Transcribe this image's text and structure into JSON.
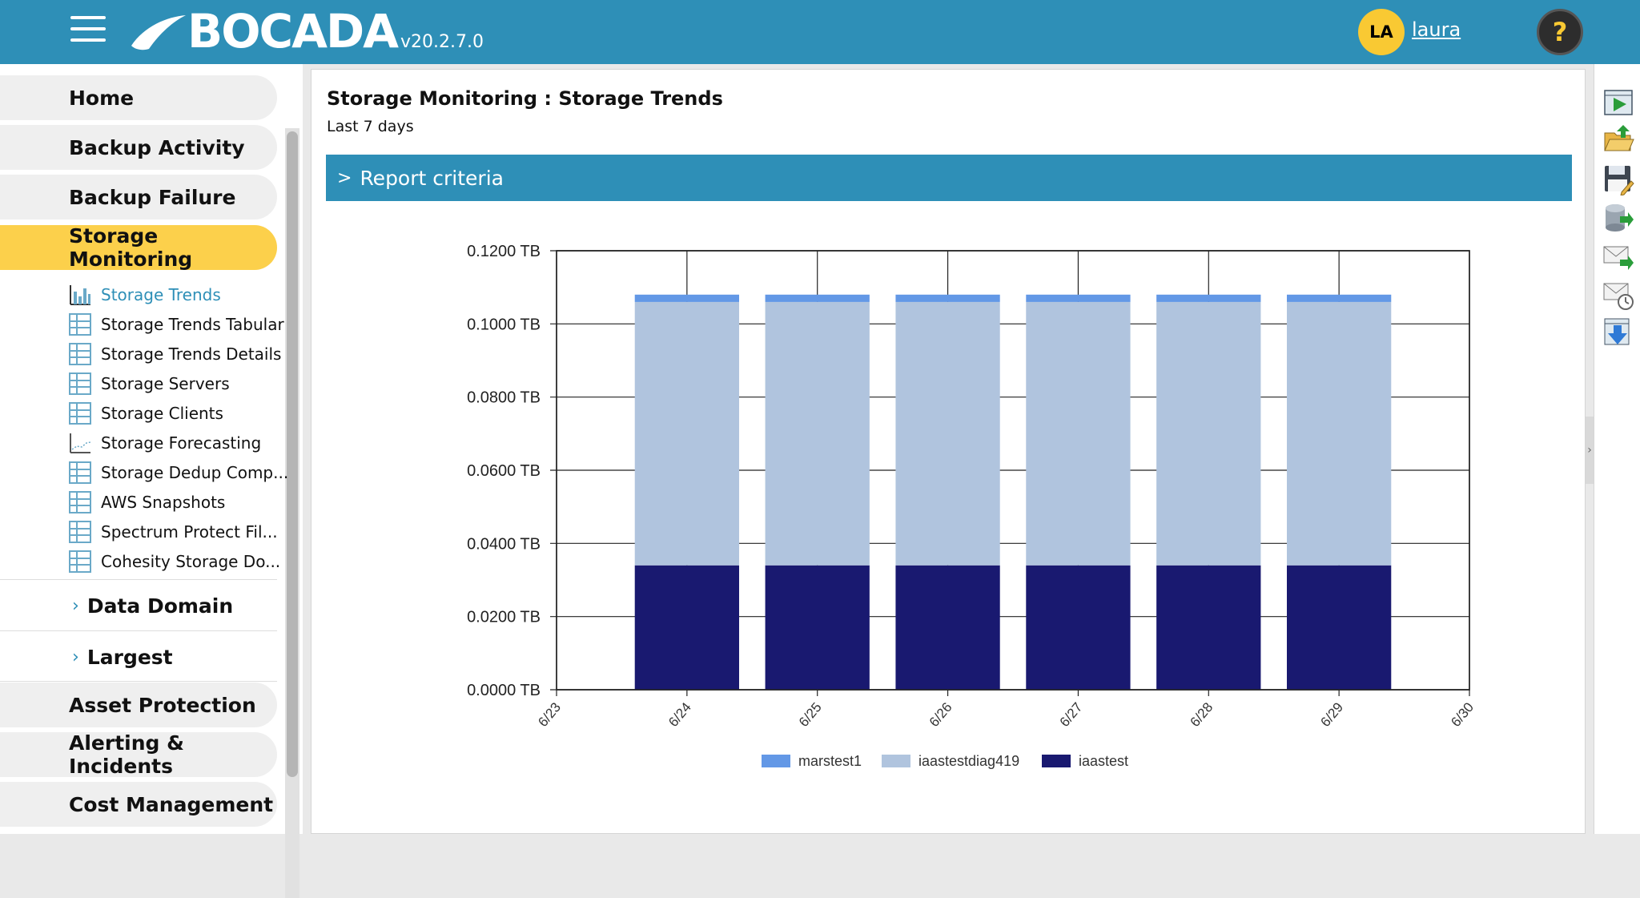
{
  "header": {
    "logo": "BOCADA",
    "version": "v20.2.7.0",
    "avatar_initials": "LA",
    "username": "laura",
    "help": "?"
  },
  "sidebar": {
    "items": [
      {
        "label": "Home"
      },
      {
        "label": "Backup Activity"
      },
      {
        "label": "Backup Failure"
      },
      {
        "label": "Storage Monitoring",
        "active": true
      },
      {
        "label": "Asset Protection"
      },
      {
        "label": "Alerting & Incidents"
      },
      {
        "label": "Cost Management"
      }
    ],
    "sub_items": [
      {
        "label": "Storage Trends",
        "icon": "bar-chart-icon",
        "active": true
      },
      {
        "label": "Storage Trends Tabular",
        "icon": "table-icon"
      },
      {
        "label": "Storage Trends Details",
        "icon": "table-icon"
      },
      {
        "label": "Storage Servers",
        "icon": "table-icon"
      },
      {
        "label": "Storage Clients",
        "icon": "table-icon"
      },
      {
        "label": "Storage Forecasting",
        "icon": "line-chart-icon"
      },
      {
        "label": "Storage Dedup Comp...",
        "icon": "table-icon"
      },
      {
        "label": "AWS Snapshots",
        "icon": "table-icon"
      },
      {
        "label": "Spectrum Protect Fil...",
        "icon": "table-icon"
      },
      {
        "label": "Cohesity Storage Do...",
        "icon": "table-icon"
      }
    ],
    "groups": [
      {
        "label": "Data Domain"
      },
      {
        "label": "Largest"
      }
    ]
  },
  "main": {
    "title": "Storage Monitoring : Storage Trends",
    "subtitle": "Last 7 days",
    "criteria_label": "Report criteria"
  },
  "toolbar": {
    "tools": [
      "run-report-icon",
      "open-folder-icon",
      "save-edit-icon",
      "export-database-icon",
      "email-send-icon",
      "email-schedule-icon",
      "download-icon"
    ]
  },
  "colors": {
    "header": "#2e8fb7",
    "active_nav": "#fcd04b",
    "series": [
      "#6398e6",
      "#b0c4de",
      "#191970"
    ]
  },
  "chart_data": {
    "type": "bar",
    "stacked": true,
    "categories": [
      "6/24",
      "6/25",
      "6/26",
      "6/27",
      "6/28",
      "6/29"
    ],
    "x_ticks": [
      "6/23",
      "6/24",
      "6/25",
      "6/26",
      "6/27",
      "6/28",
      "6/29",
      "6/30"
    ],
    "series": [
      {
        "name": "iaastest",
        "values": [
          0.034,
          0.034,
          0.034,
          0.034,
          0.034,
          0.034
        ]
      },
      {
        "name": "iaastestdiag419",
        "values": [
          0.072,
          0.072,
          0.072,
          0.072,
          0.072,
          0.072
        ]
      },
      {
        "name": "marstest1",
        "values": [
          0.002,
          0.002,
          0.002,
          0.002,
          0.002,
          0.002
        ]
      }
    ],
    "legend_order": [
      "marstest1",
      "iaastestdiag419",
      "iaastest"
    ],
    "y_ticks": [
      "0.0000 TB",
      "0.0200 TB",
      "0.0400 TB",
      "0.0600 TB",
      "0.0800 TB",
      "0.1000 TB",
      "0.1200 TB"
    ],
    "ylim": [
      0,
      0.12
    ],
    "grid": true,
    "legend_position": "bottom"
  }
}
